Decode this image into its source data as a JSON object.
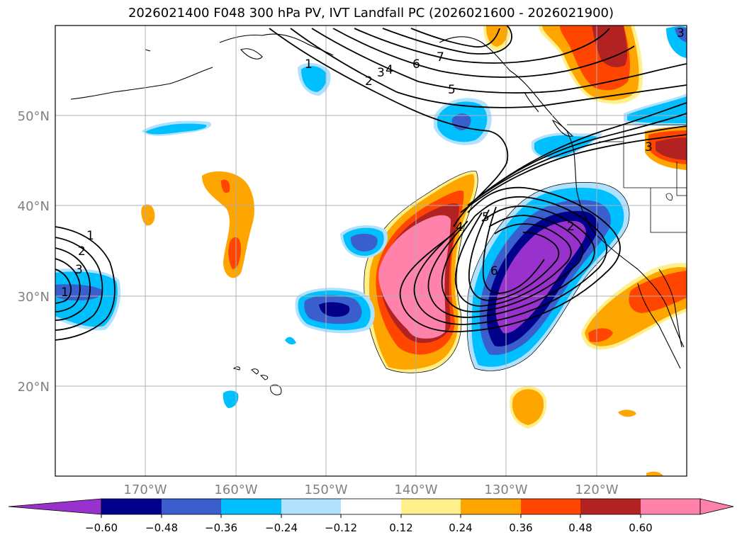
{
  "title": "2026021400 F048 300 hPa PV, IVT Landfall PC (2026021600 - 2026021900)",
  "map": {
    "lon_range": [
      -180,
      -110
    ],
    "lat_range": [
      10,
      60
    ],
    "lat_labels": [
      "50°N",
      "40°N",
      "30°N",
      "20°N"
    ],
    "lat_values": [
      50,
      40,
      30,
      20
    ],
    "lon_labels": [
      "170°W",
      "160°W",
      "150°W",
      "140°W",
      "130°W",
      "120°W"
    ],
    "lon_values": [
      -170,
      -160,
      -150,
      -140,
      -130,
      -120
    ],
    "tick_label_color": "#808080",
    "grid_color": "#b0b0b0"
  },
  "colorbar": {
    "ticks": [
      "−0.60",
      "−0.48",
      "−0.36",
      "−0.24",
      "−0.12",
      "0.12",
      "0.24",
      "0.36",
      "0.48",
      "0.60"
    ],
    "colors": [
      "#9932cc",
      "#00008b",
      "#3a5fcd",
      "#00bfff",
      "#b0e2ff",
      "#ffffff",
      "#fff08c",
      "#ffa500",
      "#ff4500",
      "#b22222",
      "#ff82ab"
    ]
  },
  "contours": {
    "labels": [
      "1",
      "2",
      "3",
      "4",
      "5",
      "6",
      "7",
      "1",
      "2",
      "3",
      "4",
      "5",
      "6",
      "1",
      "2",
      "3",
      "3"
    ]
  }
}
